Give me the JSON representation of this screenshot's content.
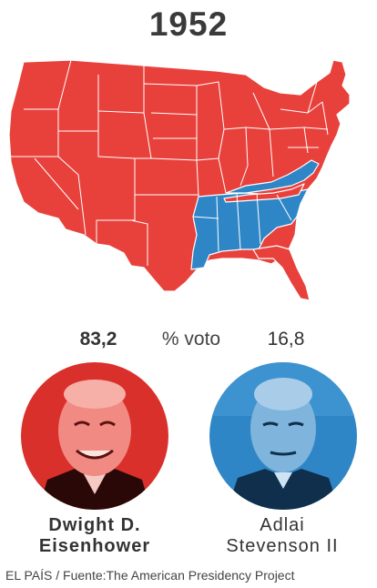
{
  "title": "1952",
  "map": {
    "states_won": [
      {
        "party": "republican",
        "states": "most states"
      },
      {
        "party": "democrat",
        "states": "southern states"
      }
    ],
    "colors": {
      "republican": "#e8413c",
      "democrat": "#2f86c6",
      "border": "#ffffff"
    }
  },
  "results": {
    "unit_label": "% voto",
    "candidates": [
      {
        "name_line1": "Dwight D.",
        "name_line2": "Eisenhower",
        "percent": "83,2",
        "color": "#e8413c"
      },
      {
        "name_line1": "Adlai",
        "name_line2": "Stevenson II",
        "percent": "16,8",
        "color": "#2f86c6"
      }
    ]
  },
  "source": "EL PAÍS / Fuente:The American Presidency Project"
}
